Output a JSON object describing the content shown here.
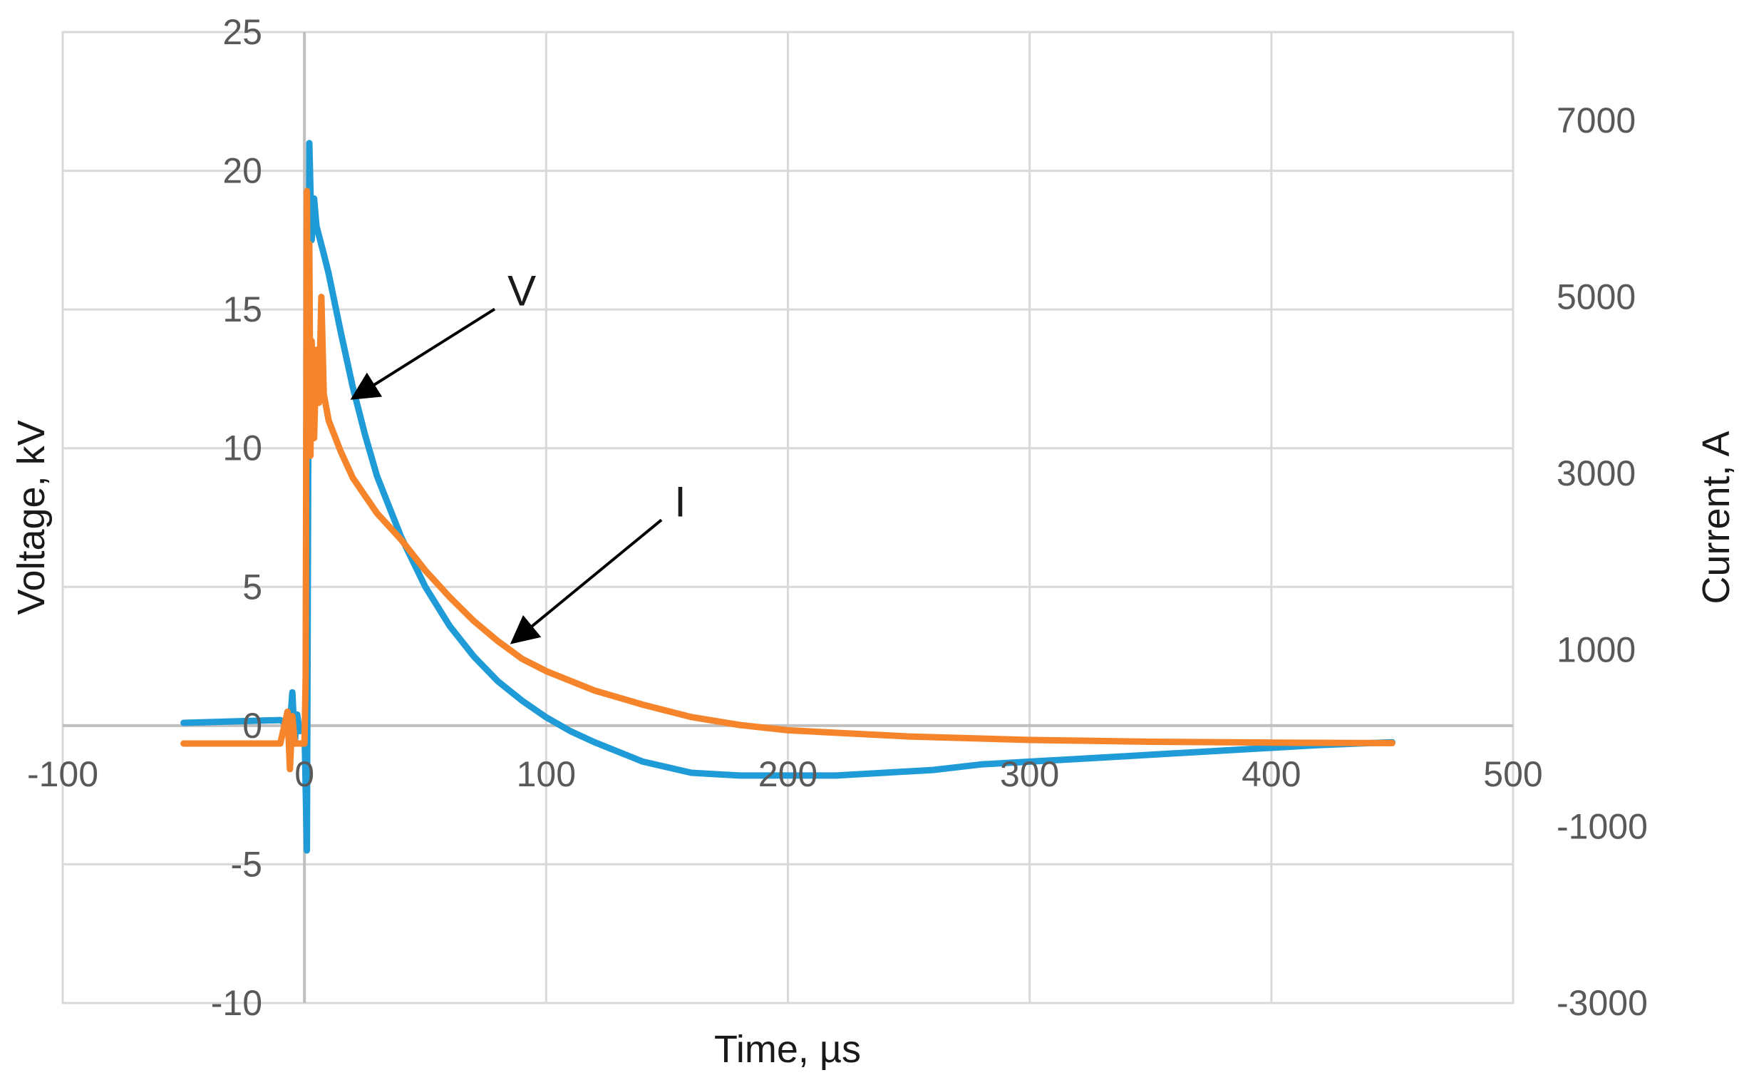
{
  "chart_data": {
    "type": "line",
    "xlabel": "Time, µs",
    "ylabel_left": "Voltage, kV",
    "ylabel_right": "Current, A",
    "xlim": [
      -100,
      500
    ],
    "ylim_left": [
      -10,
      25
    ],
    "ylim_right": [
      -3000,
      8000
    ],
    "x_ticks": [
      -100,
      0,
      100,
      200,
      300,
      400,
      500
    ],
    "y_left_ticks": [
      -10,
      -5,
      0,
      5,
      10,
      15,
      20,
      25
    ],
    "y_right_ticks": [
      -3000,
      -1000,
      1000,
      3000,
      5000,
      7000
    ],
    "grid": true,
    "colors": {
      "voltage": "#1f9bd7",
      "current": "#f5842a",
      "grid": "#d9d9d9",
      "axis": "#bfbfbf"
    },
    "series": [
      {
        "name": "V",
        "axis": "left",
        "x": [
          -50,
          -10,
          -6,
          -5,
          -4,
          -3,
          -2,
          0,
          1,
          2,
          3,
          4,
          5,
          8,
          10,
          15,
          20,
          25,
          30,
          40,
          50,
          60,
          70,
          80,
          90,
          100,
          110,
          120,
          140,
          160,
          180,
          200,
          220,
          240,
          260,
          280,
          300,
          320,
          340,
          360,
          380,
          400,
          420,
          450
        ],
        "y": [
          0.1,
          0.2,
          0.0,
          1.2,
          -0.6,
          0.4,
          -0.2,
          0.0,
          -4.5,
          21.0,
          17.5,
          19.0,
          18.0,
          17.0,
          16.3,
          14.2,
          12.2,
          10.5,
          9.0,
          6.8,
          5.0,
          3.6,
          2.5,
          1.6,
          0.9,
          0.3,
          -0.2,
          -0.6,
          -1.3,
          -1.7,
          -1.8,
          -1.8,
          -1.8,
          -1.7,
          -1.6,
          -1.4,
          -1.3,
          -1.2,
          -1.1,
          -1.0,
          -0.9,
          -0.8,
          -0.7,
          -0.6
        ]
      },
      {
        "name": "I",
        "axis": "right",
        "x": [
          -50,
          -10,
          -7,
          -6,
          -5,
          -4,
          0,
          0.5,
          1,
          1.5,
          2,
          2.5,
          3,
          4,
          5,
          6,
          7,
          8,
          10,
          15,
          20,
          30,
          40,
          50,
          60,
          70,
          80,
          90,
          100,
          120,
          140,
          160,
          180,
          200,
          250,
          300,
          350,
          400,
          450
        ],
        "y": [
          -60,
          -60,
          300,
          -350,
          250,
          -60,
          -60,
          700,
          6200,
          3800,
          5600,
          3200,
          4500,
          3400,
          4400,
          3800,
          5000,
          3900,
          3600,
          3250,
          2950,
          2550,
          2250,
          1900,
          1600,
          1330,
          1100,
          900,
          760,
          540,
          380,
          240,
          150,
          90,
          20,
          -20,
          -40,
          -50,
          -55
        ]
      }
    ],
    "annotations": [
      {
        "text": "V",
        "x": 84,
        "y": 15.4,
        "arrow_to": [
          20,
          11.8
        ]
      },
      {
        "text": "I",
        "x": 153,
        "y": 7.8,
        "arrow_to": [
          86,
          3.0
        ]
      }
    ]
  }
}
